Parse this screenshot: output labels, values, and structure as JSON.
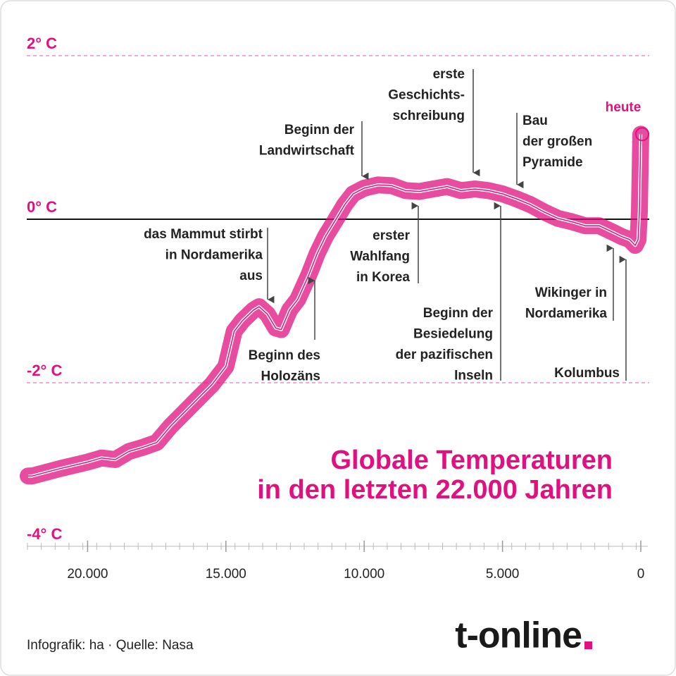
{
  "chart_data": {
    "type": "line",
    "title": [
      "Globale Temperaturen",
      "in den letzten 22.000 Jahren"
    ],
    "x": [
      22150,
      22000,
      21000,
      20000,
      19500,
      19000,
      18500,
      18000,
      17500,
      17000,
      16500,
      16000,
      15500,
      15000,
      14700,
      14400,
      14000,
      13800,
      13500,
      13200,
      13000,
      12700,
      12400,
      12000,
      11700,
      11400,
      11000,
      10700,
      10400,
      10000,
      9500,
      9000,
      8500,
      8000,
      7500,
      7000,
      6500,
      6000,
      5500,
      5000,
      4500,
      4000,
      3500,
      3000,
      2500,
      2000,
      1500,
      1000,
      700,
      400,
      200,
      100,
      50,
      0
    ],
    "values": [
      -3.14,
      -3.14,
      -3.05,
      -2.97,
      -2.92,
      -2.94,
      -2.84,
      -2.79,
      -2.73,
      -2.53,
      -2.36,
      -2.19,
      -2.02,
      -1.8,
      -1.37,
      -1.24,
      -1.11,
      -1.07,
      -1.16,
      -1.33,
      -1.35,
      -1.11,
      -0.98,
      -0.68,
      -0.42,
      -0.21,
      0.01,
      0.18,
      0.31,
      0.38,
      0.42,
      0.41,
      0.35,
      0.34,
      0.37,
      0.4,
      0.35,
      0.37,
      0.35,
      0.31,
      0.25,
      0.18,
      0.09,
      0.01,
      -0.03,
      -0.08,
      -0.08,
      -0.16,
      -0.21,
      -0.25,
      -0.32,
      -0.25,
      0.09,
      1.04
    ],
    "color": "#e0107f",
    "xlim": [
      22200,
      0
    ],
    "ylim": [
      -4,
      2
    ],
    "xticks": [
      {
        "value": 20000,
        "label": "20.000"
      },
      {
        "value": 15000,
        "label": "15.000"
      },
      {
        "value": 10000,
        "label": "10.000"
      },
      {
        "value": 5000,
        "label": "5.000"
      },
      0
    ],
    "yticks": [
      {
        "value": -4,
        "label": "-4° C"
      },
      {
        "value": -2,
        "label": "-2° C"
      },
      {
        "value": 0,
        "label": "0° C"
      },
      {
        "value": 2,
        "label": "2° C"
      }
    ],
    "annotations": [
      {
        "lines": [
          "Beginn der",
          "Landwirtschaft"
        ]
      },
      {
        "lines": [
          "erste",
          "Geschichts-",
          "schreibung"
        ]
      },
      {
        "lines": [
          "Bau",
          "der großen",
          "Pyramide"
        ]
      },
      {
        "lines": [
          "heute"
        ]
      },
      {
        "lines": [
          "das Mammut stirbt",
          "in Nordamerika",
          "aus"
        ]
      },
      {
        "lines": [
          "Beginn des",
          "Holozäns"
        ]
      },
      {
        "lines": [
          "erster",
          "Wahlfang",
          "in Korea"
        ]
      },
      {
        "lines": [
          "Beginn der",
          "Besiedelung",
          "der pazifischen",
          "Inseln"
        ]
      },
      {
        "lines": [
          "Wikinger in",
          "Nordamerika"
        ]
      },
      {
        "lines": [
          "Kolumbus"
        ]
      }
    ],
    "source": "Infografik: ha  ·  Quelle: Nasa",
    "logo": "t-online"
  }
}
